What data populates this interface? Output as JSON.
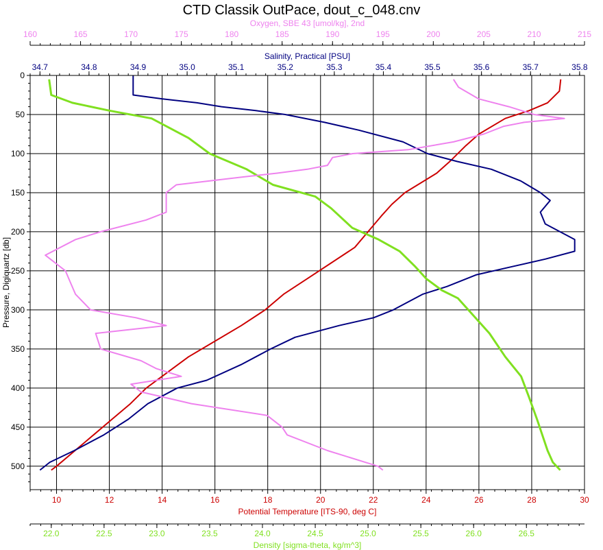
{
  "chart_data": {
    "type": "line",
    "title": "CTD Classik OutPace, dout_c_048.cnv",
    "grid": true,
    "y_axis": {
      "label": "Pressure, Digiquartz [db]",
      "range": [
        0,
        530
      ],
      "inverted": true,
      "ticks": [
        "0",
        "50",
        "100",
        "150",
        "200",
        "250",
        "300",
        "350",
        "400",
        "450",
        "500"
      ]
    },
    "x_axes": [
      {
        "id": "oxygen",
        "label": "Oxygen, SBE 43 [umol/kg], 2nd",
        "position": "top-outer",
        "color": "#ee82ee",
        "range": [
          160,
          215
        ],
        "ticks": [
          "160",
          "165",
          "170",
          "175",
          "180",
          "185",
          "190",
          "195",
          "200",
          "205",
          "210",
          "215"
        ]
      },
      {
        "id": "salinity",
        "label": "Salinity, Practical [PSU]",
        "position": "top-inner",
        "color": "#000080",
        "range": [
          34.68,
          35.81
        ],
        "ticks": [
          "34.7",
          "34.8",
          "34.9",
          "35.0",
          "35.1",
          "35.2",
          "35.3",
          "35.4",
          "35.5",
          "35.6",
          "35.7",
          "35.8"
        ]
      },
      {
        "id": "temperature",
        "label": "Potential Temperature [ITS-90, deg C]",
        "position": "bottom-inner",
        "color": "#cc0000",
        "range": [
          9,
          30
        ],
        "ticks": [
          "10",
          "12",
          "14",
          "16",
          "18",
          "20",
          "22",
          "24",
          "26",
          "28",
          "30"
        ]
      },
      {
        "id": "density",
        "label": "Density [sigma-theta, kg/m^3]",
        "position": "bottom-outer",
        "color": "#80e020",
        "range": [
          21.8,
          27.05
        ],
        "ticks": [
          "22.0",
          "22.5",
          "23.0",
          "23.5",
          "24.0",
          "24.5",
          "25.0",
          "25.5",
          "26.0",
          "26.5"
        ]
      }
    ],
    "series": [
      {
        "axis": "temperature",
        "color": "#cc0000",
        "pressure": [
          5,
          20,
          35,
          45,
          55,
          75,
          90,
          110,
          125,
          150,
          165,
          180,
          200,
          220,
          240,
          260,
          280,
          300,
          320,
          340,
          360,
          380,
          400,
          420,
          440,
          460,
          480,
          500,
          505
        ],
        "values": [
          29.1,
          29.05,
          28.6,
          27.9,
          27.0,
          26.0,
          25.5,
          24.9,
          24.4,
          23.2,
          22.7,
          22.3,
          21.8,
          21.3,
          20.4,
          19.5,
          18.6,
          17.9,
          17.0,
          16.0,
          15.0,
          14.2,
          13.4,
          12.8,
          12.1,
          11.4,
          10.7,
          10.0,
          9.8
        ]
      },
      {
        "axis": "salinity",
        "color": "#000080",
        "pressure": [
          0,
          25,
          30,
          35,
          40,
          45,
          50,
          60,
          70,
          85,
          100,
          110,
          120,
          135,
          150,
          160,
          175,
          190,
          200,
          210,
          225,
          235,
          245,
          255,
          270,
          280,
          300,
          310,
          320,
          335,
          350,
          370,
          390,
          400,
          420,
          440,
          460,
          480,
          495,
          505
        ],
        "values": [
          34.89,
          34.89,
          34.95,
          35.02,
          35.07,
          35.14,
          35.2,
          35.28,
          35.35,
          35.44,
          35.49,
          35.55,
          35.62,
          35.68,
          35.72,
          35.74,
          35.72,
          35.73,
          35.76,
          35.79,
          35.79,
          35.73,
          35.66,
          35.59,
          35.53,
          35.48,
          35.42,
          35.38,
          35.31,
          35.22,
          35.17,
          35.11,
          35.04,
          34.98,
          34.92,
          34.88,
          34.83,
          34.77,
          34.72,
          34.7
        ]
      },
      {
        "axis": "density",
        "color": "#80e020",
        "pressure": [
          5,
          25,
          35,
          45,
          55,
          80,
          100,
          120,
          140,
          155,
          170,
          195,
          210,
          225,
          245,
          260,
          275,
          285,
          300,
          330,
          360,
          385,
          410,
          440,
          460,
          480,
          495,
          505
        ],
        "values": [
          21.98,
          22.0,
          22.2,
          22.55,
          22.95,
          23.3,
          23.5,
          23.85,
          24.1,
          24.5,
          24.65,
          24.85,
          25.1,
          25.3,
          25.45,
          25.55,
          25.7,
          25.85,
          25.95,
          26.15,
          26.3,
          26.45,
          26.52,
          26.6,
          26.65,
          26.7,
          26.75,
          26.82
        ]
      },
      {
        "axis": "oxygen",
        "color": "#ee82ee",
        "pressure": [
          5,
          15,
          30,
          40,
          50,
          55,
          60,
          65,
          75,
          85,
          95,
          100,
          105,
          115,
          120,
          125,
          130,
          140,
          150,
          160,
          175,
          185,
          200,
          210,
          230,
          240,
          250,
          265,
          280,
          300,
          310,
          320,
          330,
          350,
          365,
          375,
          385,
          395,
          405,
          420,
          435,
          450,
          460,
          480,
          500,
          505
        ],
        "values": [
          202.0,
          202.5,
          204.5,
          207.5,
          210.0,
          213.0,
          209.0,
          207.0,
          205.0,
          202.0,
          197.5,
          192.0,
          190.0,
          189.5,
          187.5,
          184.5,
          181.0,
          174.5,
          173.5,
          173.5,
          173.5,
          171.5,
          167.0,
          164.5,
          161.5,
          162.5,
          163.5,
          164.0,
          164.5,
          166.0,
          170.5,
          173.5,
          166.5,
          167.0,
          171.0,
          172.5,
          175.0,
          170.0,
          171.0,
          176.0,
          183.5,
          185.0,
          185.5,
          189.5,
          194.5,
          195.0
        ]
      }
    ]
  }
}
